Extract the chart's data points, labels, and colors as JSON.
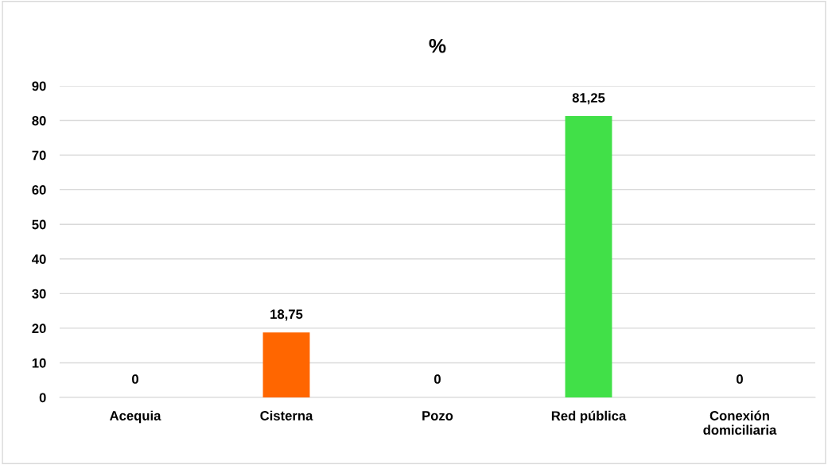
{
  "chart_data": {
    "type": "bar",
    "title": "%",
    "categories": [
      "Acequia",
      "Cisterna",
      "Pozo",
      "Red pública",
      "Conexión\ndomiciliaria"
    ],
    "values": [
      0,
      18.75,
      0,
      81.25,
      0
    ],
    "colors": [
      "#ff6600",
      "#ff6600",
      "#ff6600",
      "#41e048",
      "#41e048"
    ],
    "value_labels": [
      "0",
      "18,75",
      "0",
      "81,25",
      "0"
    ],
    "ylim": [
      0,
      90
    ],
    "yticks": [
      0,
      10,
      20,
      30,
      40,
      50,
      60,
      70,
      80,
      90
    ],
    "grid": "y",
    "legend": false
  }
}
